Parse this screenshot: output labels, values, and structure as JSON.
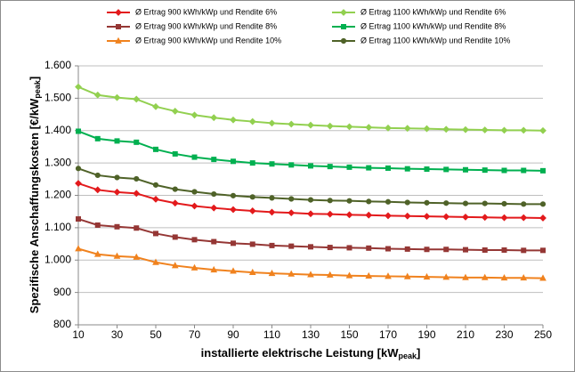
{
  "chart_data": {
    "type": "line",
    "x_label": [
      "installierte elektrische Leistung [kW",
      "peak",
      "]"
    ],
    "y_label": [
      "Spezifische Anschaffungskosten [€/kW",
      "peak",
      "]"
    ],
    "x": [
      10,
      20,
      30,
      40,
      50,
      60,
      70,
      80,
      90,
      100,
      110,
      120,
      130,
      140,
      150,
      160,
      170,
      180,
      190,
      200,
      210,
      220,
      230,
      240,
      250
    ],
    "xlim": [
      10,
      250
    ],
    "xticks": [
      10,
      30,
      50,
      70,
      90,
      110,
      130,
      150,
      170,
      190,
      210,
      230,
      250
    ],
    "ylim": [
      800,
      1600
    ],
    "yticks": [
      800,
      900,
      {
        "value": 1000,
        "label": "1.000"
      },
      {
        "value": 1100,
        "label": "1.100"
      },
      {
        "value": 1200,
        "label": "1.200"
      },
      {
        "value": 1300,
        "label": "1.300"
      },
      {
        "value": 1400,
        "label": "1.400"
      },
      {
        "value": 1500,
        "label": "1.500"
      },
      {
        "value": 1600,
        "label": "1.600"
      }
    ],
    "grid": true,
    "legend": "top",
    "series": [
      {
        "name": "Ø Ertrag 900 kWh/kWp und Rendite 6%",
        "color": "#e31a1c",
        "marker": "diamond",
        "values": [
          1237,
          1217,
          1210,
          1206,
          1188,
          1176,
          1167,
          1161,
          1156,
          1152,
          1148,
          1146,
          1143,
          1142,
          1140,
          1139,
          1137,
          1136,
          1135,
          1134,
          1133,
          1132,
          1131,
          1131,
          1130
        ]
      },
      {
        "name": "Ø Ertrag 900 kWh/kWp und Rendite 8%",
        "color": "#953735",
        "marker": "square",
        "values": [
          1127,
          1108,
          1103,
          1099,
          1082,
          1071,
          1063,
          1057,
          1052,
          1049,
          1045,
          1043,
          1041,
          1039,
          1038,
          1037,
          1035,
          1034,
          1033,
          1033,
          1032,
          1031,
          1031,
          1030,
          1030
        ]
      },
      {
        "name": "Ø Ertrag 900 kWh/kWp und Rendite 10%",
        "color": "#f0821e",
        "marker": "triangle",
        "values": [
          1035,
          1018,
          1012,
          1009,
          993,
          983,
          976,
          970,
          966,
          962,
          959,
          957,
          955,
          954,
          952,
          951,
          950,
          949,
          948,
          947,
          946,
          946,
          945,
          945,
          944
        ]
      },
      {
        "name": "Ø Ertrag 1100 kWh/kWp und Rendite 6%",
        "color": "#92d050",
        "marker": "diamond",
        "values": [
          1535,
          1510,
          1502,
          1497,
          1474,
          1460,
          1448,
          1440,
          1433,
          1428,
          1423,
          1420,
          1417,
          1414,
          1412,
          1410,
          1408,
          1407,
          1406,
          1404,
          1403,
          1402,
          1401,
          1401,
          1400
        ]
      },
      {
        "name": "Ø Ertrag 1100 kWh/kWp und Rendite 8%",
        "color": "#00b050",
        "marker": "square",
        "values": [
          1398,
          1375,
          1368,
          1364,
          1342,
          1328,
          1318,
          1311,
          1305,
          1300,
          1297,
          1294,
          1291,
          1289,
          1287,
          1285,
          1284,
          1282,
          1281,
          1280,
          1279,
          1278,
          1277,
          1277,
          1276
        ]
      },
      {
        "name": "Ø Ertrag 1100 kWh/kWp und Rendite 10%",
        "color": "#4f6228",
        "marker": "circle",
        "values": [
          1283,
          1262,
          1255,
          1251,
          1232,
          1219,
          1211,
          1204,
          1199,
          1195,
          1192,
          1189,
          1186,
          1184,
          1183,
          1181,
          1180,
          1178,
          1177,
          1176,
          1175,
          1175,
          1174,
          1173,
          1173
        ]
      }
    ]
  }
}
